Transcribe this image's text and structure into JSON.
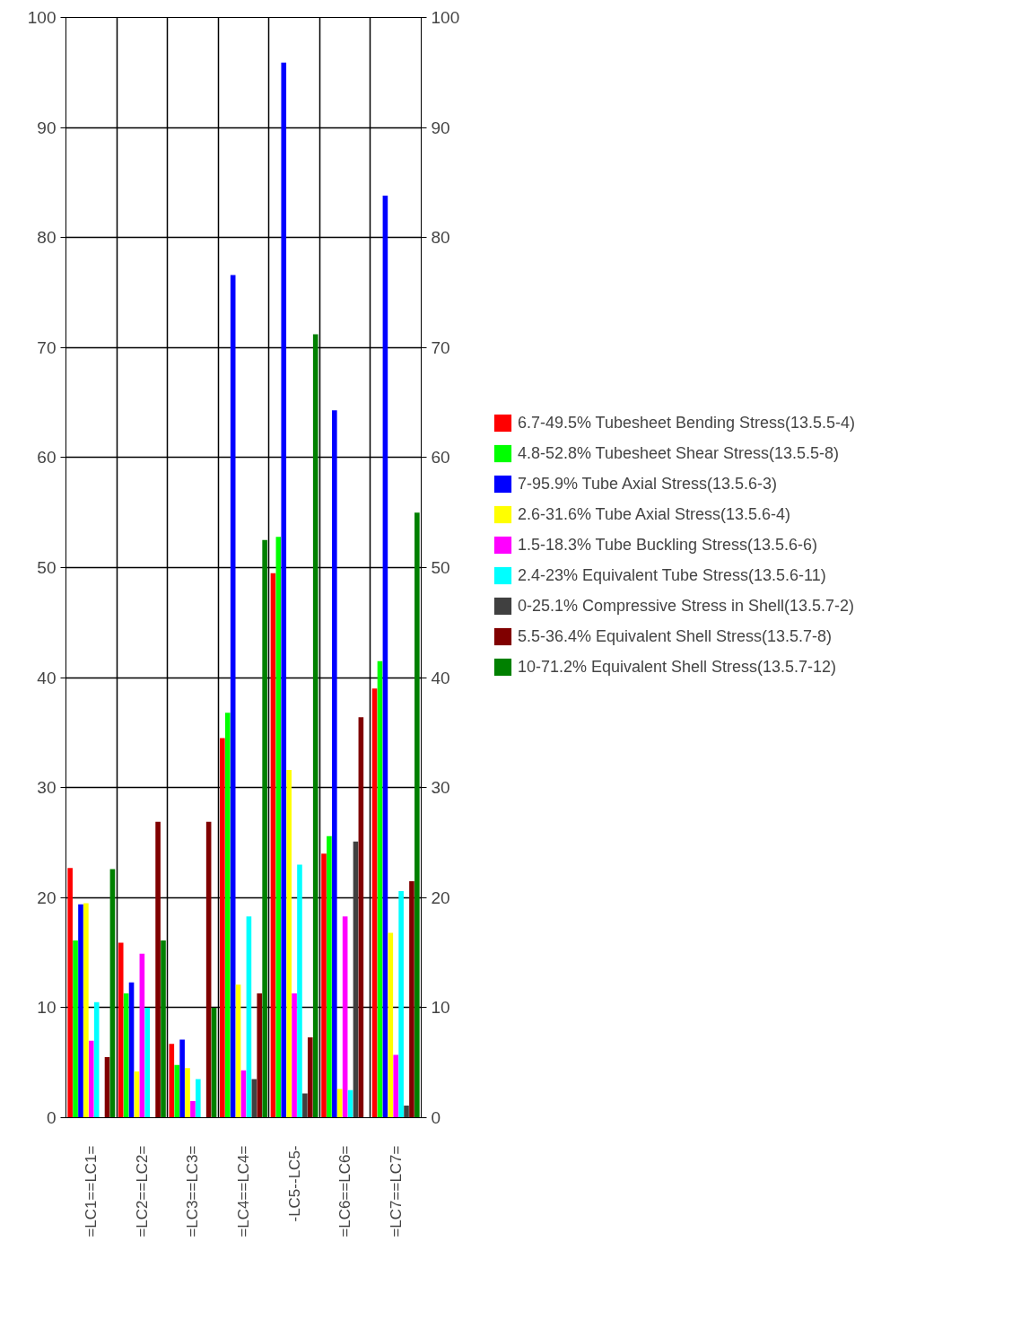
{
  "chart_data": {
    "type": "bar",
    "categories": [
      "=LC1==LC1=",
      "=LC2==LC2=",
      "=LC3==LC3=",
      "=LC4==LC4=",
      "-LC5--LC5-",
      "=LC6==LC6=",
      "=LC7==LC7="
    ],
    "series": [
      {
        "name": "6.7-49.5% Tubesheet Bending Stress(13.5.5-4)",
        "color": "#ff0000",
        "values": [
          22.7,
          15.9,
          6.7,
          34.5,
          49.5,
          24.0,
          39.0
        ]
      },
      {
        "name": "4.8-52.8% Tubesheet Shear Stress(13.5.5-8)",
        "color": "#00ff00",
        "values": [
          16.1,
          11.3,
          4.8,
          36.8,
          52.8,
          25.6,
          41.5
        ]
      },
      {
        "name": "7-95.9% Tube Axial Stress(13.5.6-3)",
        "color": "#0000ff",
        "values": [
          19.4,
          12.3,
          7.1,
          76.6,
          95.9,
          64.3,
          83.8
        ]
      },
      {
        "name": "2.6-31.6% Tube Axial Stress(13.5.6-4)",
        "color": "#ffff00",
        "values": [
          19.5,
          4.2,
          4.5,
          12.1,
          31.6,
          2.6,
          16.8
        ]
      },
      {
        "name": "1.5-18.3% Tube Buckling Stress(13.5.6-6)",
        "color": "#ff00ff",
        "values": [
          7.0,
          14.9,
          1.5,
          4.3,
          11.3,
          18.3,
          5.7
        ]
      },
      {
        "name": "2.4-23% Equivalent Tube Stress(13.5.6-11)",
        "color": "#00ffff",
        "values": [
          10.5,
          10.0,
          3.5,
          18.3,
          23.0,
          2.5,
          20.6
        ]
      },
      {
        "name": "0-25.1% Compressive Stress in Shell(13.5.7-2)",
        "color": "#404040",
        "values": [
          0,
          0,
          0,
          3.5,
          2.2,
          25.1,
          1.1
        ]
      },
      {
        "name": "5.5-36.4% Equivalent Shell Stress(13.5.7-8)",
        "color": "#800000",
        "values": [
          5.5,
          26.9,
          26.9,
          11.3,
          7.3,
          36.4,
          21.5
        ]
      },
      {
        "name": "10-71.2% Equivalent Shell Stress(13.5.7-12)",
        "color": "#008000",
        "values": [
          22.6,
          16.1,
          10.0,
          52.5,
          71.2,
          0,
          55.0
        ]
      }
    ],
    "ylim": [
      0,
      100
    ],
    "yticks": [
      0,
      10,
      20,
      30,
      40,
      50,
      60,
      70,
      80,
      90,
      100
    ],
    "y2lim": [
      0,
      100
    ],
    "y2ticks": [
      0,
      10,
      20,
      30,
      40,
      50,
      60,
      70,
      80,
      90,
      100
    ],
    "grid": true,
    "legend": "right"
  }
}
